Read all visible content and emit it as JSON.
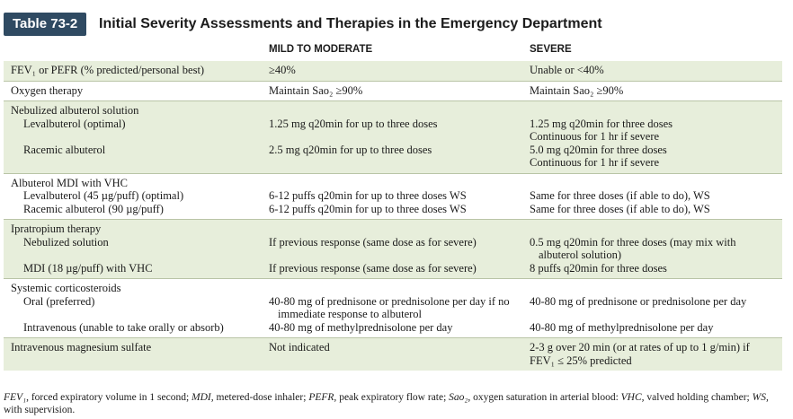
{
  "header": {
    "tab_label": "Table 73-2",
    "title": "Initial Severity Assessments and Therapies in the Emergency Department"
  },
  "columns": [
    "",
    "MILD TO MODERATE",
    "SEVERE"
  ],
  "rows": {
    "fev": {
      "label": "FEV₁ or PEFR (% predicted/personal best)",
      "mild": "≥40%",
      "severe": "Unable or <40%"
    },
    "oxygen": {
      "label": "Oxygen therapy",
      "mild": "Maintain Sao₂ ≥90%",
      "severe": "Maintain Sao₂ ≥90%"
    },
    "neb": {
      "label": "Nebulized albuterol solution",
      "levalb_label": "Levalbuterol (optimal)",
      "levalb_mild": "1.25 mg q20min for up to three doses",
      "levalb_severe_1": "1.25 mg q20min for three doses",
      "levalb_severe_2": "Continuous for 1 hr if severe",
      "racemic_label": "Racemic albuterol",
      "racemic_mild": "2.5 mg q20min for up to three doses",
      "racemic_severe_1": "5.0 mg q20min for three doses",
      "racemic_severe_2": "Continuous for 1 hr if severe"
    },
    "mdi": {
      "label": "Albuterol MDI with VHC",
      "levalb_label": "Levalbuterol (45 µg/puff) (optimal)",
      "levalb_mild": "6-12 puffs q20min for up to three doses WS",
      "levalb_severe": "Same for three doses (if able to do), WS",
      "racemic_label": "Racemic albuterol (90 µg/puff)",
      "racemic_mild": "6-12 puffs q20min for up to three doses WS",
      "racemic_severe": "Same for three doses (if able to do), WS"
    },
    "ipra": {
      "label": "Ipratropium therapy",
      "neb_label": "Nebulized solution",
      "neb_mild": "If previous response (same dose as for severe)",
      "neb_severe": "0.5 mg q20min for three doses (may mix with albuterol solution)",
      "mdi_label": "MDI (18 µg/puff) with VHC",
      "mdi_mild": "If previous response (same dose as for severe)",
      "mdi_severe": "8 puffs q20min for three doses"
    },
    "steroids": {
      "label": "Systemic corticosteroids",
      "oral_label": "Oral (preferred)",
      "oral_mild": "40-80 mg of prednisone or prednisolone per day if no immediate response to albuterol",
      "oral_severe": "40-80 mg of prednisone or prednisolone per day",
      "iv_label": "Intravenous (unable to take orally or absorb)",
      "iv_mild": "40-80 mg of methylprednisolone per day",
      "iv_severe": "40-80 mg of methylprednisolone per day"
    },
    "mag": {
      "label": "Intravenous magnesium sulfate",
      "mild": "Not indicated",
      "severe": "2-3 g over 20 min (or at rates of up to 1 g/min) if FEV₁ ≤ 25% predicted"
    }
  },
  "footnote": {
    "t1": "FEV₁",
    "d1": ", forced expiratory volume in 1 second; ",
    "t2": "MDI,",
    "d2": " metered-dose inhaler; ",
    "t3": "PEFR,",
    "d3": " peak expiratory flow rate; ",
    "t4": "Sao₂",
    "d4": ", oxygen saturation in arterial blood: ",
    "t5": "VHC,",
    "d5": " valved holding chamber; ",
    "t6": "WS,",
    "d6": " with supervision."
  },
  "colors": {
    "tab": "#2f4a62",
    "shade": "#e7eedb",
    "rule": "#1f2f45"
  }
}
